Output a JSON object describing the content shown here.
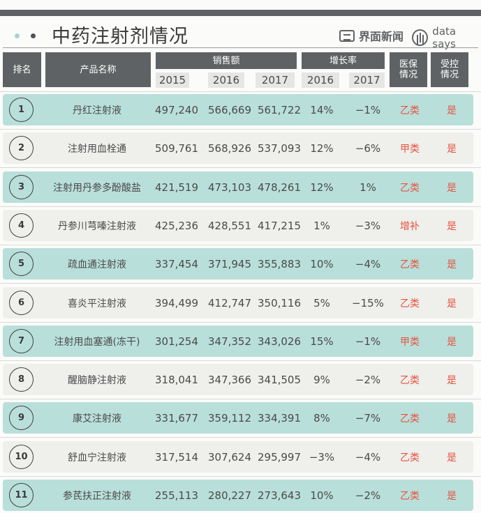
{
  "header": {
    "title": "中药注射剂情况",
    "brand_jiemian": "界面新闻",
    "brand_datasays": "data says",
    "icons": [
      "jiemian-logo-icon",
      "data-says-logo-icon"
    ]
  },
  "columns": {
    "rank": "排名",
    "product": "产品名称",
    "sales": "销售额",
    "sales_years": [
      "2015",
      "2016",
      "2017"
    ],
    "growth": "增长率",
    "growth_years": [
      "2016",
      "2017"
    ],
    "insurance": "医保\n情况",
    "controlled": "受控\n情况"
  },
  "colors": {
    "header_bg": "#5f6264",
    "row_teal": "#b9dfda",
    "row_grey": "#efefec",
    "accent_red": "#e5533e"
  },
  "rows": [
    {
      "rank": "1",
      "name": "丹红注射液",
      "s2015": "497,240",
      "s2016": "566,669",
      "s2017": "561,722",
      "g2016": "14%",
      "g2017": "−1%",
      "insurance": "乙类",
      "controlled": "是"
    },
    {
      "rank": "2",
      "name": "注射用血栓通",
      "s2015": "509,761",
      "s2016": "568,926",
      "s2017": "537,093",
      "g2016": "12%",
      "g2017": "−6%",
      "insurance": "甲类",
      "controlled": "是"
    },
    {
      "rank": "3",
      "name": "注射用丹参多酚酸盐",
      "s2015": "421,519",
      "s2016": "473,103",
      "s2017": "478,261",
      "g2016": "12%",
      "g2017": "1%",
      "insurance": "乙类",
      "controlled": "是"
    },
    {
      "rank": "4",
      "name": "丹参川芎嗪注射液",
      "s2015": "425,236",
      "s2016": "428,551",
      "s2017": "417,215",
      "g2016": "1%",
      "g2017": "−3%",
      "insurance": "增补",
      "controlled": "是"
    },
    {
      "rank": "5",
      "name": "疏血通注射液",
      "s2015": "337,454",
      "s2016": "371,945",
      "s2017": "355,883",
      "g2016": "10%",
      "g2017": "−4%",
      "insurance": "乙类",
      "controlled": "是"
    },
    {
      "rank": "6",
      "name": "喜炎平注射液",
      "s2015": "394,499",
      "s2016": "412,747",
      "s2017": "350,116",
      "g2016": "5%",
      "g2017": "−15%",
      "insurance": "乙类",
      "controlled": "是"
    },
    {
      "rank": "7",
      "name": "注射用血塞通(冻干)",
      "s2015": "301,254",
      "s2016": "347,352",
      "s2017": "343,026",
      "g2016": "15%",
      "g2017": "−1%",
      "insurance": "甲类",
      "controlled": "是"
    },
    {
      "rank": "8",
      "name": "醒脑静注射液",
      "s2015": "318,041",
      "s2016": "347,366",
      "s2017": "341,505",
      "g2016": "9%",
      "g2017": "−2%",
      "insurance": "乙类",
      "controlled": "是"
    },
    {
      "rank": "9",
      "name": "康艾注射液",
      "s2015": "331,677",
      "s2016": "359,112",
      "s2017": "334,391",
      "g2016": "8%",
      "g2017": "−7%",
      "insurance": "乙类",
      "controlled": "是"
    },
    {
      "rank": "10",
      "name": "舒血宁注射液",
      "s2015": "317,514",
      "s2016": "307,624",
      "s2017": "295,997",
      "g2016": "−3%",
      "g2017": "−4%",
      "insurance": "乙类",
      "controlled": "是"
    },
    {
      "rank": "11",
      "name": "参芪扶正注射液",
      "s2015": "255,113",
      "s2016": "280,227",
      "s2017": "273,643",
      "g2016": "10%",
      "g2017": "−2%",
      "insurance": "乙类",
      "controlled": "是"
    }
  ]
}
